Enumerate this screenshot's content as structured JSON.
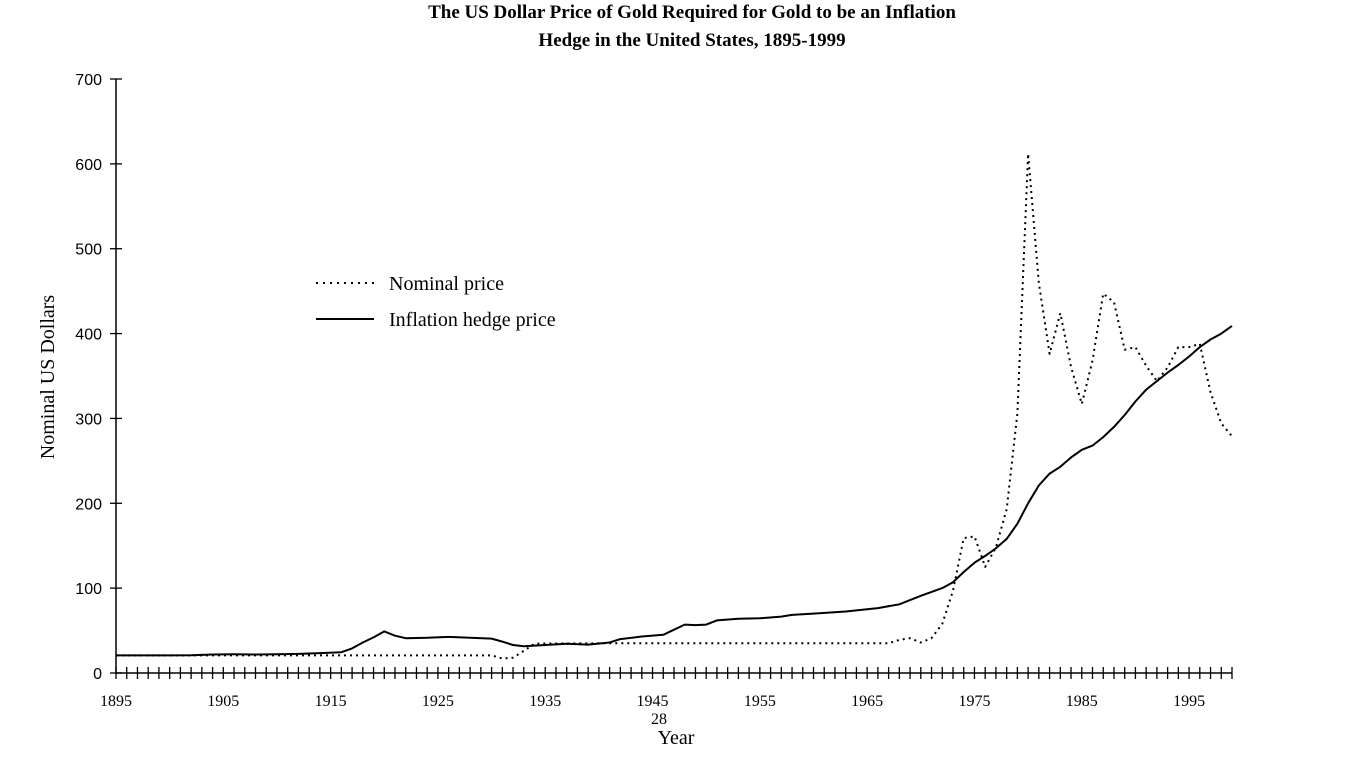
{
  "chart_data": {
    "type": "line",
    "title_line1": "The US Dollar Price of Gold Required for Gold to be an Inflation",
    "title_line2": "Hedge in the United States, 1895-1999",
    "xlabel": "Year",
    "ylabel": "Nominal US Dollars",
    "page_number": "28",
    "xlim": [
      1895,
      1999
    ],
    "ylim": [
      0,
      700
    ],
    "x_ticks": [
      "1895",
      "1905",
      "1915",
      "1925",
      "1935",
      "1945",
      "1955",
      "1965",
      "1975",
      "1985",
      "1995"
    ],
    "y_ticks": [
      "0",
      "100",
      "200",
      "300",
      "400",
      "500",
      "600",
      "700"
    ],
    "grid": false,
    "legend_position": "upper-left",
    "series": [
      {
        "name": "Nominal price",
        "style": "dotted",
        "points": [
          [
            1895,
            20.7
          ],
          [
            1900,
            20.7
          ],
          [
            1910,
            20.7
          ],
          [
            1920,
            20.7
          ],
          [
            1930,
            20.7
          ],
          [
            1931,
            17.1
          ],
          [
            1932,
            18
          ],
          [
            1933,
            26
          ],
          [
            1934,
            34.7
          ],
          [
            1940,
            35
          ],
          [
            1950,
            35
          ],
          [
            1960,
            35
          ],
          [
            1967,
            35
          ],
          [
            1968,
            39
          ],
          [
            1969,
            41
          ],
          [
            1970,
            36
          ],
          [
            1971,
            41
          ],
          [
            1972,
            58
          ],
          [
            1973,
            97
          ],
          [
            1974,
            159
          ],
          [
            1975,
            161
          ],
          [
            1976,
            125
          ],
          [
            1977,
            148
          ],
          [
            1978,
            193
          ],
          [
            1979,
            306
          ],
          [
            1980,
            612
          ],
          [
            1981,
            460
          ],
          [
            1982,
            376
          ],
          [
            1983,
            424
          ],
          [
            1984,
            361
          ],
          [
            1985,
            317
          ],
          [
            1986,
            368
          ],
          [
            1987,
            447
          ],
          [
            1988,
            437
          ],
          [
            1989,
            381
          ],
          [
            1990,
            384
          ],
          [
            1991,
            362
          ],
          [
            1992,
            344
          ],
          [
            1993,
            360
          ],
          [
            1994,
            384
          ],
          [
            1995,
            384
          ],
          [
            1996,
            388
          ],
          [
            1997,
            331
          ],
          [
            1998,
            294
          ],
          [
            1999,
            279
          ]
        ]
      },
      {
        "name": "Inflation hedge price",
        "style": "solid",
        "points": [
          [
            1895,
            20.7
          ],
          [
            1900,
            20.7
          ],
          [
            1902,
            20.9
          ],
          [
            1904,
            21.8
          ],
          [
            1906,
            22
          ],
          [
            1908,
            21.8
          ],
          [
            1910,
            22
          ],
          [
            1912,
            22.5
          ],
          [
            1914,
            23.4
          ],
          [
            1916,
            24.5
          ],
          [
            1917,
            29
          ],
          [
            1918,
            36
          ],
          [
            1919,
            42
          ],
          [
            1920,
            49
          ],
          [
            1921,
            44
          ],
          [
            1922,
            41
          ],
          [
            1924,
            41.5
          ],
          [
            1926,
            42.5
          ],
          [
            1928,
            41.5
          ],
          [
            1930,
            40.5
          ],
          [
            1931,
            37
          ],
          [
            1932,
            33
          ],
          [
            1933,
            31.5
          ],
          [
            1935,
            33
          ],
          [
            1937,
            34.5
          ],
          [
            1939,
            33.5
          ],
          [
            1941,
            36
          ],
          [
            1942,
            40
          ],
          [
            1944,
            43
          ],
          [
            1946,
            45
          ],
          [
            1947,
            51
          ],
          [
            1948,
            57
          ],
          [
            1949,
            56.5
          ],
          [
            1950,
            57
          ],
          [
            1951,
            62
          ],
          [
            1953,
            64
          ],
          [
            1955,
            64.5
          ],
          [
            1957,
            66.5
          ],
          [
            1958,
            68.5
          ],
          [
            1960,
            70
          ],
          [
            1963,
            72.5
          ],
          [
            1966,
            76.5
          ],
          [
            1968,
            81
          ],
          [
            1970,
            91
          ],
          [
            1972,
            100
          ],
          [
            1973,
            107
          ],
          [
            1974,
            119
          ],
          [
            1975,
            130
          ],
          [
            1976,
            138
          ],
          [
            1977,
            147
          ],
          [
            1978,
            158
          ],
          [
            1979,
            176
          ],
          [
            1980,
            200
          ],
          [
            1981,
            221
          ],
          [
            1982,
            235
          ],
          [
            1983,
            243
          ],
          [
            1984,
            254
          ],
          [
            1985,
            263
          ],
          [
            1986,
            268
          ],
          [
            1987,
            278
          ],
          [
            1988,
            290
          ],
          [
            1989,
            304
          ],
          [
            1990,
            320
          ],
          [
            1991,
            334
          ],
          [
            1992,
            344
          ],
          [
            1993,
            354
          ],
          [
            1994,
            363
          ],
          [
            1995,
            373
          ],
          [
            1996,
            384
          ],
          [
            1997,
            393
          ],
          [
            1998,
            400
          ],
          [
            1999,
            409
          ]
        ]
      }
    ]
  }
}
